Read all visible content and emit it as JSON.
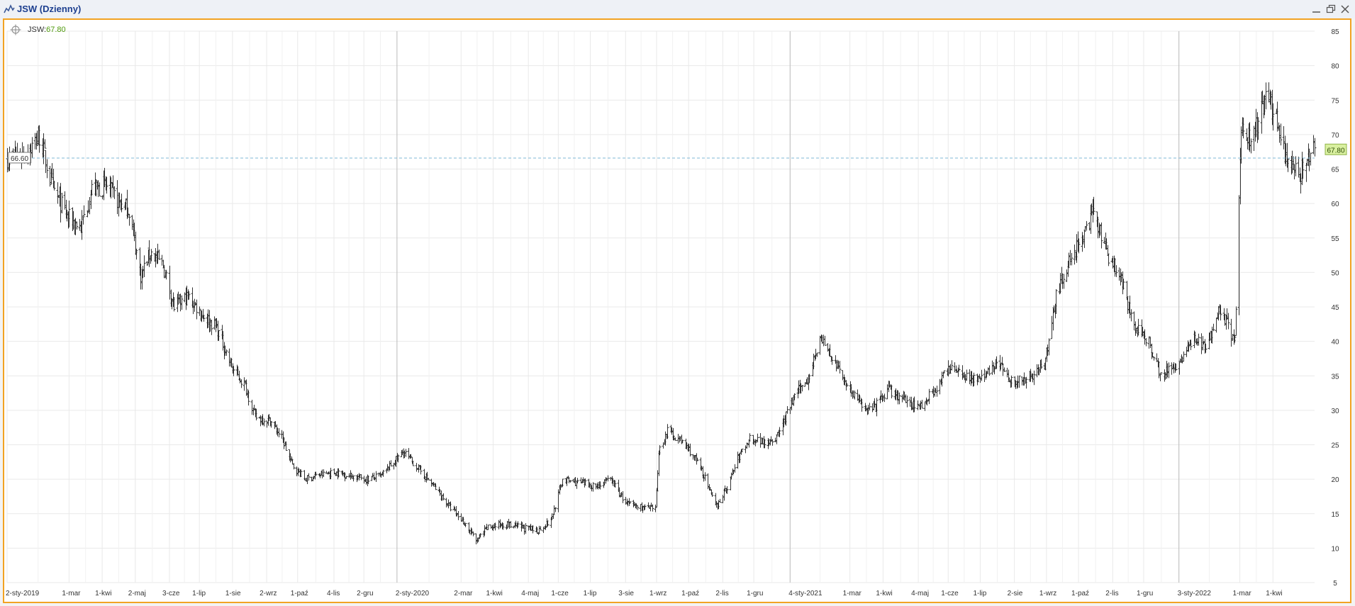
{
  "window": {
    "title": "JSW (Dzienny)",
    "controls": [
      "minimize-icon",
      "restore-icon",
      "close-icon"
    ]
  },
  "legend": {
    "symbol": "JSW:",
    "value": "67.80",
    "value_color": "#4f9a0c",
    "icon": "move-icon"
  },
  "colors": {
    "frame": "#f2a323",
    "bars": "#333333",
    "grid": "#e9e9e9",
    "ref_line": "#7fb8d6",
    "last_badge": "#d9f0a0"
  },
  "chart_data": {
    "type": "ohlc",
    "symbol": "JSW",
    "interval": "Dzienny",
    "ylim": [
      5,
      85
    ],
    "y_ticks": [
      5,
      10,
      15,
      20,
      25,
      30,
      35,
      40,
      45,
      50,
      55,
      60,
      65,
      70,
      75,
      80,
      85
    ],
    "x_range": [
      "2019-01-02",
      "2022-05-10"
    ],
    "x_ticks": [
      {
        "label": "2-sty-2019",
        "date": "2019-01-02"
      },
      {
        "label": "1-mar",
        "date": "2019-03-01"
      },
      {
        "label": "1-kwi",
        "date": "2019-04-01"
      },
      {
        "label": "2-maj",
        "date": "2019-05-02"
      },
      {
        "label": "3-cze",
        "date": "2019-06-03"
      },
      {
        "label": "1-lip",
        "date": "2019-07-01"
      },
      {
        "label": "1-sie",
        "date": "2019-08-01"
      },
      {
        "label": "2-wrz",
        "date": "2019-09-02"
      },
      {
        "label": "1-paź",
        "date": "2019-10-01"
      },
      {
        "label": "4-lis",
        "date": "2019-11-04"
      },
      {
        "label": "2-gru",
        "date": "2019-12-02"
      },
      {
        "label": "2-sty-2020",
        "date": "2020-01-02"
      },
      {
        "label": "2-mar",
        "date": "2020-03-02"
      },
      {
        "label": "1-kwi",
        "date": "2020-04-01"
      },
      {
        "label": "4-maj",
        "date": "2020-05-04"
      },
      {
        "label": "1-cze",
        "date": "2020-06-01"
      },
      {
        "label": "1-lip",
        "date": "2020-07-01"
      },
      {
        "label": "3-sie",
        "date": "2020-08-03"
      },
      {
        "label": "1-wrz",
        "date": "2020-09-01"
      },
      {
        "label": "1-paź",
        "date": "2020-10-01"
      },
      {
        "label": "2-lis",
        "date": "2020-11-02"
      },
      {
        "label": "1-gru",
        "date": "2020-12-01"
      },
      {
        "label": "4-sty-2021",
        "date": "2021-01-04"
      },
      {
        "label": "1-mar",
        "date": "2021-03-01"
      },
      {
        "label": "1-kwi",
        "date": "2021-04-01"
      },
      {
        "label": "4-maj",
        "date": "2021-05-04"
      },
      {
        "label": "1-cze",
        "date": "2021-06-01"
      },
      {
        "label": "1-lip",
        "date": "2021-07-01"
      },
      {
        "label": "2-sie",
        "date": "2021-08-02"
      },
      {
        "label": "1-wrz",
        "date": "2021-09-01"
      },
      {
        "label": "1-paź",
        "date": "2021-10-01"
      },
      {
        "label": "2-lis",
        "date": "2021-11-02"
      },
      {
        "label": "1-gru",
        "date": "2021-12-01"
      },
      {
        "label": "3-sty-2022",
        "date": "2022-01-03"
      },
      {
        "label": "1-mar",
        "date": "2022-03-01"
      },
      {
        "label": "1-kwi",
        "date": "2022-04-01"
      }
    ],
    "year_separators": [
      "2020-01-02",
      "2021-01-04",
      "2022-01-03"
    ],
    "reference_line": {
      "value": 66.6,
      "label": "66.60"
    },
    "last_value": {
      "value": 67.8,
      "label": "67.80"
    },
    "price_path": [
      {
        "date": "2019-01-02",
        "value": 66.5
      },
      {
        "date": "2019-01-21",
        "value": 67.5
      },
      {
        "date": "2019-02-01",
        "value": 69.8
      },
      {
        "date": "2019-02-14",
        "value": 62.0
      },
      {
        "date": "2019-02-28",
        "value": 58.0
      },
      {
        "date": "2019-03-12",
        "value": 56.5
      },
      {
        "date": "2019-03-22",
        "value": 62.0
      },
      {
        "date": "2019-04-05",
        "value": 62.5
      },
      {
        "date": "2019-04-15",
        "value": 60.5
      },
      {
        "date": "2019-04-26",
        "value": 59.0
      },
      {
        "date": "2019-05-07",
        "value": 49.5
      },
      {
        "date": "2019-05-16",
        "value": 53.0
      },
      {
        "date": "2019-05-28",
        "value": 51.0
      },
      {
        "date": "2019-06-07",
        "value": 45.0
      },
      {
        "date": "2019-06-20",
        "value": 46.5
      },
      {
        "date": "2019-07-03",
        "value": 44.0
      },
      {
        "date": "2019-07-17",
        "value": 42.0
      },
      {
        "date": "2019-08-01",
        "value": 36.0
      },
      {
        "date": "2019-08-13",
        "value": 33.5
      },
      {
        "date": "2019-08-22",
        "value": 29.0
      },
      {
        "date": "2019-09-05",
        "value": 28.5
      },
      {
        "date": "2019-09-16",
        "value": 26.0
      },
      {
        "date": "2019-09-26",
        "value": 22.0
      },
      {
        "date": "2019-10-08",
        "value": 20.0
      },
      {
        "date": "2019-10-18",
        "value": 20.5
      },
      {
        "date": "2019-11-04",
        "value": 21.0
      },
      {
        "date": "2019-11-20",
        "value": 20.5
      },
      {
        "date": "2019-12-04",
        "value": 20.0
      },
      {
        "date": "2019-12-18",
        "value": 20.5
      },
      {
        "date": "2020-01-08",
        "value": 24.0
      },
      {
        "date": "2020-01-22",
        "value": 21.5
      },
      {
        "date": "2020-02-05",
        "value": 19.0
      },
      {
        "date": "2020-02-20",
        "value": 16.0
      },
      {
        "date": "2020-03-06",
        "value": 13.5
      },
      {
        "date": "2020-03-16",
        "value": 11.0
      },
      {
        "date": "2020-03-27",
        "value": 13.0
      },
      {
        "date": "2020-04-10",
        "value": 13.5
      },
      {
        "date": "2020-04-27",
        "value": 13.0
      },
      {
        "date": "2020-05-12",
        "value": 12.5
      },
      {
        "date": "2020-05-25",
        "value": 14.0
      },
      {
        "date": "2020-06-05",
        "value": 20.0
      },
      {
        "date": "2020-06-19",
        "value": 19.5
      },
      {
        "date": "2020-07-06",
        "value": 19.0
      },
      {
        "date": "2020-07-20",
        "value": 20.0
      },
      {
        "date": "2020-08-03",
        "value": 16.5
      },
      {
        "date": "2020-08-17",
        "value": 16.0
      },
      {
        "date": "2020-08-31",
        "value": 15.5
      },
      {
        "date": "2020-09-03",
        "value": 24.0
      },
      {
        "date": "2020-09-11",
        "value": 27.0
      },
      {
        "date": "2020-09-24",
        "value": 25.5
      },
      {
        "date": "2020-10-05",
        "value": 23.5
      },
      {
        "date": "2020-10-14",
        "value": 21.0
      },
      {
        "date": "2020-10-26",
        "value": 16.0
      },
      {
        "date": "2020-11-05",
        "value": 18.5
      },
      {
        "date": "2020-11-16",
        "value": 23.0
      },
      {
        "date": "2020-11-27",
        "value": 26.0
      },
      {
        "date": "2020-12-10",
        "value": 25.5
      },
      {
        "date": "2020-12-22",
        "value": 26.0
      },
      {
        "date": "2021-01-08",
        "value": 32.0
      },
      {
        "date": "2021-01-20",
        "value": 34.5
      },
      {
        "date": "2021-02-01",
        "value": 40.5
      },
      {
        "date": "2021-02-12",
        "value": 37.5
      },
      {
        "date": "2021-02-25",
        "value": 34.0
      },
      {
        "date": "2021-03-10",
        "value": 31.0
      },
      {
        "date": "2021-03-22",
        "value": 30.0
      },
      {
        "date": "2021-04-06",
        "value": 33.0
      },
      {
        "date": "2021-04-20",
        "value": 31.5
      },
      {
        "date": "2021-05-05",
        "value": 30.5
      },
      {
        "date": "2021-05-19",
        "value": 33.0
      },
      {
        "date": "2021-06-04",
        "value": 36.5
      },
      {
        "date": "2021-06-18",
        "value": 35.0
      },
      {
        "date": "2021-07-02",
        "value": 34.5
      },
      {
        "date": "2021-07-16",
        "value": 37.0
      },
      {
        "date": "2021-08-02",
        "value": 34.0
      },
      {
        "date": "2021-08-16",
        "value": 35.0
      },
      {
        "date": "2021-08-30",
        "value": 36.5
      },
      {
        "date": "2021-09-10",
        "value": 47.0
      },
      {
        "date": "2021-09-24",
        "value": 52.0
      },
      {
        "date": "2021-10-06",
        "value": 56.0
      },
      {
        "date": "2021-10-15",
        "value": 58.5
      },
      {
        "date": "2021-10-27",
        "value": 53.0
      },
      {
        "date": "2021-11-08",
        "value": 50.0
      },
      {
        "date": "2021-11-22",
        "value": 42.0
      },
      {
        "date": "2021-12-06",
        "value": 40.0
      },
      {
        "date": "2021-12-17",
        "value": 35.0
      },
      {
        "date": "2022-01-03",
        "value": 37.0
      },
      {
        "date": "2022-01-17",
        "value": 40.5
      },
      {
        "date": "2022-01-28",
        "value": 39.0
      },
      {
        "date": "2022-02-10",
        "value": 45.0
      },
      {
        "date": "2022-02-24",
        "value": 40.0
      },
      {
        "date": "2022-03-02",
        "value": 70.0
      },
      {
        "date": "2022-03-14",
        "value": 70.0
      },
      {
        "date": "2022-03-25",
        "value": 76.0
      },
      {
        "date": "2022-04-05",
        "value": 72.0
      },
      {
        "date": "2022-04-14",
        "value": 66.0
      },
      {
        "date": "2022-04-26",
        "value": 64.0
      },
      {
        "date": "2022-05-10",
        "value": 67.8
      }
    ]
  }
}
